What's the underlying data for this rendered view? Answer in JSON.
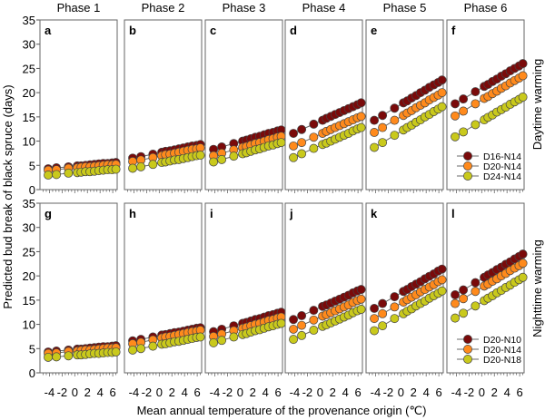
{
  "chart_data": {
    "type": "scatter",
    "xlabel": "Mean annual temperature of the provenance origin (℃)",
    "ylabel": "Predicted bud break of black spruce (days)",
    "ylim": [
      0,
      35
    ],
    "xlim": [
      -5.5,
      6.7
    ],
    "yticks": [
      0,
      5,
      10,
      15,
      20,
      25,
      30,
      35
    ],
    "xticks": [
      -4,
      -2,
      0,
      2,
      4,
      6
    ],
    "grid": false,
    "legend_placement": "bottom-right of last panel in each row",
    "colors": [
      "#7a0a0a",
      "#ff8a1c",
      "#c9c91c"
    ],
    "x": [
      -4.2,
      -2.9,
      -1.0,
      0.4,
      1.0,
      1.7,
      2.4,
      3.1,
      3.8,
      4.5,
      5.2,
      5.9,
      6.5
    ],
    "columns": [
      "Phase 1",
      "Phase 2",
      "Phase 3",
      "Phase 4",
      "Phase 5",
      "Phase 6"
    ],
    "rows": [
      {
        "label": "Daytime warming",
        "legend": [
          "D16-N14",
          "D20-N14",
          "D24-N14"
        ],
        "panels": [
          {
            "letter": "a",
            "series": [
              [
                4.3,
                4.5,
                4.7,
                4.9,
                4.9,
                5.0,
                5.1,
                5.2,
                5.3,
                5.4,
                5.4,
                5.5,
                5.6
              ],
              [
                4.0,
                4.1,
                4.4,
                4.5,
                4.6,
                4.7,
                4.7,
                4.8,
                4.9,
                5.0,
                5.1,
                5.1,
                5.2
              ],
              [
                3.0,
                3.1,
                3.4,
                3.5,
                3.6,
                3.7,
                3.7,
                3.8,
                3.9,
                4.0,
                4.1,
                4.1,
                4.2
              ]
            ]
          },
          {
            "letter": "b",
            "series": [
              [
                6.5,
                6.8,
                7.3,
                7.7,
                7.9,
                8.0,
                8.2,
                8.4,
                8.6,
                8.8,
                9.0,
                9.1,
                9.3
              ],
              [
                5.8,
                6.1,
                6.6,
                7.0,
                7.2,
                7.3,
                7.5,
                7.7,
                7.9,
                8.1,
                8.3,
                8.4,
                8.6
              ],
              [
                4.4,
                4.7,
                5.2,
                5.6,
                5.7,
                5.9,
                6.1,
                6.2,
                6.4,
                6.6,
                6.8,
                7.0,
                7.1
              ]
            ]
          },
          {
            "letter": "c",
            "series": [
              [
                8.3,
                8.8,
                9.5,
                10.0,
                10.2,
                10.5,
                10.8,
                11.0,
                11.3,
                11.6,
                11.8,
                12.1,
                12.3
              ],
              [
                7.0,
                7.5,
                8.2,
                8.7,
                8.9,
                9.2,
                9.5,
                9.7,
                10.0,
                10.3,
                10.5,
                10.8,
                11.0
              ],
              [
                5.7,
                6.2,
                6.9,
                7.4,
                7.6,
                7.9,
                8.2,
                8.4,
                8.7,
                9.0,
                9.2,
                9.5,
                9.7
              ]
            ]
          },
          {
            "letter": "d",
            "series": [
              [
                11.6,
                12.4,
                13.5,
                14.3,
                14.7,
                15.1,
                15.5,
                15.9,
                16.3,
                16.7,
                17.1,
                17.5,
                17.9
              ],
              [
                9.0,
                9.7,
                10.8,
                11.6,
                12.0,
                12.4,
                12.8,
                13.2,
                13.6,
                14.0,
                14.4,
                14.8,
                15.1
              ],
              [
                6.6,
                7.4,
                8.5,
                9.3,
                9.6,
                10.0,
                10.4,
                10.8,
                11.2,
                11.6,
                12.1,
                12.5,
                12.8
              ]
            ]
          },
          {
            "letter": "e",
            "series": [
              [
                14.3,
                15.3,
                16.8,
                17.9,
                18.3,
                18.9,
                19.4,
                20.0,
                20.5,
                21.1,
                21.6,
                22.1,
                22.6
              ],
              [
                11.8,
                12.8,
                14.3,
                15.3,
                15.8,
                16.3,
                16.9,
                17.4,
                17.9,
                18.5,
                19.0,
                19.5,
                20.0
              ],
              [
                8.7,
                9.7,
                11.2,
                12.3,
                12.8,
                13.3,
                13.9,
                14.4,
                15.0,
                15.5,
                16.1,
                16.6,
                17.1
              ]
            ]
          },
          {
            "letter": "f",
            "series": [
              [
                17.7,
                18.7,
                20.2,
                21.3,
                21.7,
                22.3,
                22.8,
                23.4,
                23.9,
                24.5,
                25.0,
                25.5,
                26.0
              ],
              [
                15.2,
                16.2,
                17.7,
                18.8,
                19.2,
                19.8,
                20.3,
                20.9,
                21.4,
                22.0,
                22.5,
                23.0,
                23.5
              ],
              [
                10.9,
                11.9,
                13.4,
                14.4,
                14.9,
                15.4,
                16.0,
                16.5,
                17.0,
                17.6,
                18.1,
                18.6,
                19.1
              ]
            ]
          }
        ]
      },
      {
        "label": "Nighttime warming",
        "legend": [
          "D20-N10",
          "D20-N14",
          "D20-N18"
        ],
        "panels": [
          {
            "letter": "g",
            "series": [
              [
                4.3,
                4.5,
                4.7,
                4.9,
                4.9,
                5.0,
                5.1,
                5.2,
                5.3,
                5.4,
                5.4,
                5.5,
                5.6
              ],
              [
                4.0,
                4.1,
                4.4,
                4.5,
                4.6,
                4.7,
                4.7,
                4.8,
                4.9,
                5.0,
                5.1,
                5.1,
                5.2
              ],
              [
                3.2,
                3.3,
                3.5,
                3.7,
                3.7,
                3.8,
                3.9,
                4.0,
                4.0,
                4.1,
                4.2,
                4.2,
                4.3
              ]
            ]
          },
          {
            "letter": "h",
            "series": [
              [
                6.6,
                6.9,
                7.4,
                7.8,
                7.9,
                8.1,
                8.3,
                8.4,
                8.6,
                8.8,
                9.0,
                9.2,
                9.3
              ],
              [
                6.0,
                6.3,
                6.8,
                7.2,
                7.4,
                7.5,
                7.7,
                7.9,
                8.1,
                8.3,
                8.5,
                8.6,
                8.8
              ],
              [
                4.7,
                5.0,
                5.5,
                5.9,
                6.0,
                6.2,
                6.4,
                6.5,
                6.7,
                6.9,
                7.1,
                7.3,
                7.4
              ]
            ]
          },
          {
            "letter": "i",
            "series": [
              [
                8.5,
                9.0,
                9.7,
                10.2,
                10.4,
                10.7,
                11.0,
                11.2,
                11.5,
                11.8,
                12.0,
                12.3,
                12.5
              ],
              [
                7.5,
                8.0,
                8.7,
                9.2,
                9.4,
                9.7,
                10.0,
                10.2,
                10.5,
                10.8,
                11.0,
                11.3,
                11.5
              ],
              [
                6.2,
                6.7,
                7.4,
                7.9,
                8.1,
                8.4,
                8.7,
                8.9,
                9.2,
                9.5,
                9.7,
                10.0,
                10.2
              ]
            ]
          },
          {
            "letter": "j",
            "series": [
              [
                11.0,
                11.8,
                12.9,
                13.7,
                14.0,
                14.4,
                14.8,
                15.2,
                15.6,
                16.0,
                16.5,
                16.9,
                17.2
              ],
              [
                9.0,
                9.8,
                10.9,
                11.7,
                12.0,
                12.4,
                12.8,
                13.2,
                13.6,
                14.0,
                14.5,
                14.9,
                15.2
              ],
              [
                6.9,
                7.7,
                8.8,
                9.6,
                9.9,
                10.3,
                10.7,
                11.1,
                11.5,
                11.9,
                12.4,
                12.8,
                13.1
              ]
            ]
          },
          {
            "letter": "k",
            "series": [
              [
                13.3,
                14.3,
                15.7,
                16.8,
                17.2,
                17.8,
                18.3,
                18.8,
                19.4,
                19.9,
                20.4,
                21.0,
                21.4
              ],
              [
                11.2,
                12.2,
                13.6,
                14.6,
                15.1,
                15.6,
                16.1,
                16.7,
                17.2,
                17.7,
                18.2,
                18.8,
                19.2
              ],
              [
                8.7,
                9.7,
                11.2,
                12.2,
                12.7,
                13.2,
                13.8,
                14.3,
                14.8,
                15.4,
                15.9,
                16.4,
                16.9
              ]
            ]
          },
          {
            "letter": "l",
            "series": [
              [
                16.1,
                17.1,
                18.6,
                19.7,
                20.2,
                20.7,
                21.3,
                21.8,
                22.4,
                22.9,
                23.5,
                24.0,
                24.5
              ],
              [
                14.3,
                15.3,
                16.8,
                17.9,
                18.3,
                18.9,
                19.4,
                20.0,
                20.5,
                21.1,
                21.6,
                22.1,
                22.6
              ],
              [
                11.3,
                12.3,
                13.8,
                14.9,
                15.4,
                15.9,
                16.5,
                17.0,
                17.6,
                18.1,
                18.7,
                19.2,
                19.7
              ]
            ]
          }
        ]
      }
    ]
  }
}
